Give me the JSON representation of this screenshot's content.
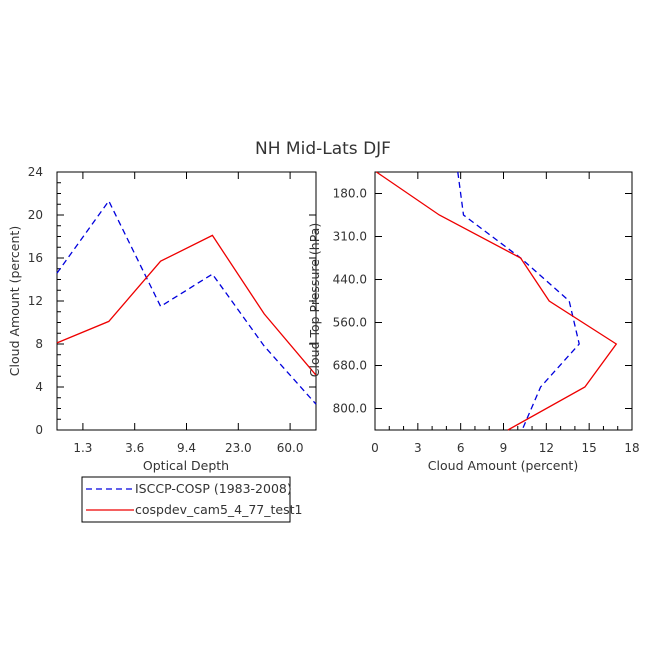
{
  "title": "NH Mid-Lats DJF",
  "chart_data": [
    {
      "type": "line",
      "xlabel": "Optical Depth",
      "ylabel": "Cloud Amount (percent)",
      "x_tick_labels": [
        "1.3",
        "3.6",
        "9.4",
        "23.0",
        "60.0"
      ],
      "y_ticks": [
        0,
        4,
        8,
        12,
        16,
        20,
        24
      ],
      "ylim": [
        0,
        24
      ],
      "series": [
        {
          "name": "ISCCP-COSP (1983-2008)",
          "color": "#0000dd",
          "dash": true,
          "values": [
            14.6,
            21.3,
            11.5,
            14.5,
            7.8,
            2.4
          ]
        },
        {
          "name": "cospdev_cam5_4_77_test1",
          "color": "#ee0000",
          "dash": false,
          "values": [
            8.1,
            10.1,
            15.7,
            18.1,
            10.8,
            5.1
          ]
        }
      ]
    },
    {
      "type": "line",
      "xlabel": "Cloud Amount (percent)",
      "ylabel": "Cloud Top Pressure (hPa)",
      "x_ticks": [
        0,
        3,
        6,
        9,
        12,
        15,
        18
      ],
      "xlim": [
        0,
        18
      ],
      "y_tick_labels": [
        "180.0",
        "310.0",
        "440.0",
        "560.0",
        "680.0",
        "800.0"
      ],
      "series": [
        {
          "name": "ISCCP-COSP (1983-2008)",
          "color": "#0000dd",
          "dash": true,
          "values": [
            5.8,
            6.2,
            10.2,
            13.6,
            14.3,
            11.6,
            10.3
          ]
        },
        {
          "name": "cospdev_cam5_4_77_test1",
          "color": "#ee0000",
          "dash": false,
          "values": [
            0.1,
            4.5,
            10.2,
            12.2,
            16.9,
            14.7,
            9.3
          ]
        }
      ]
    }
  ],
  "legend": [
    {
      "label": "ISCCP-COSP (1983-2008)",
      "color": "#0000dd",
      "dash": true
    },
    {
      "label": "cospdev_cam5_4_77_test1",
      "color": "#ee0000",
      "dash": false
    }
  ]
}
